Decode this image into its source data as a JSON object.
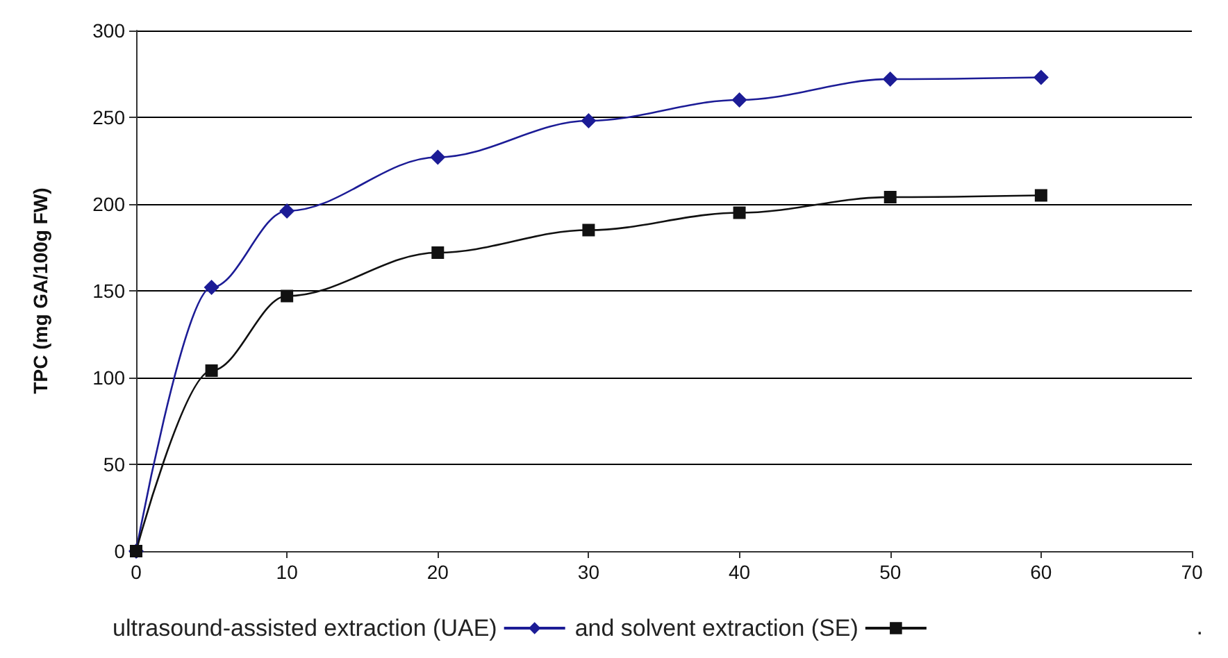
{
  "chart_data": {
    "type": "line",
    "ylabel": "TPC (mg GA/100g FW)",
    "x": [
      0,
      5,
      10,
      20,
      30,
      40,
      50,
      60
    ],
    "series": [
      {
        "name": "ultrasound-assisted extraction (UAE)",
        "color": "#1c1c96",
        "marker": "diamond",
        "values": [
          0,
          152,
          196,
          227,
          248,
          260,
          272,
          273
        ]
      },
      {
        "name": "and solvent extraction (SE)",
        "color": "#111111",
        "marker": "square",
        "values": [
          0,
          104,
          147,
          172,
          185,
          195,
          204,
          205
        ]
      }
    ],
    "xlim": [
      0,
      70
    ],
    "xticks": [
      0,
      10,
      20,
      30,
      40,
      50,
      60,
      70
    ],
    "ylim": [
      0,
      300
    ],
    "yticks": [
      0,
      50,
      100,
      150,
      200,
      250,
      300
    ],
    "grid": "y",
    "legend": "bottom",
    "annotations": [
      "."
    ]
  }
}
